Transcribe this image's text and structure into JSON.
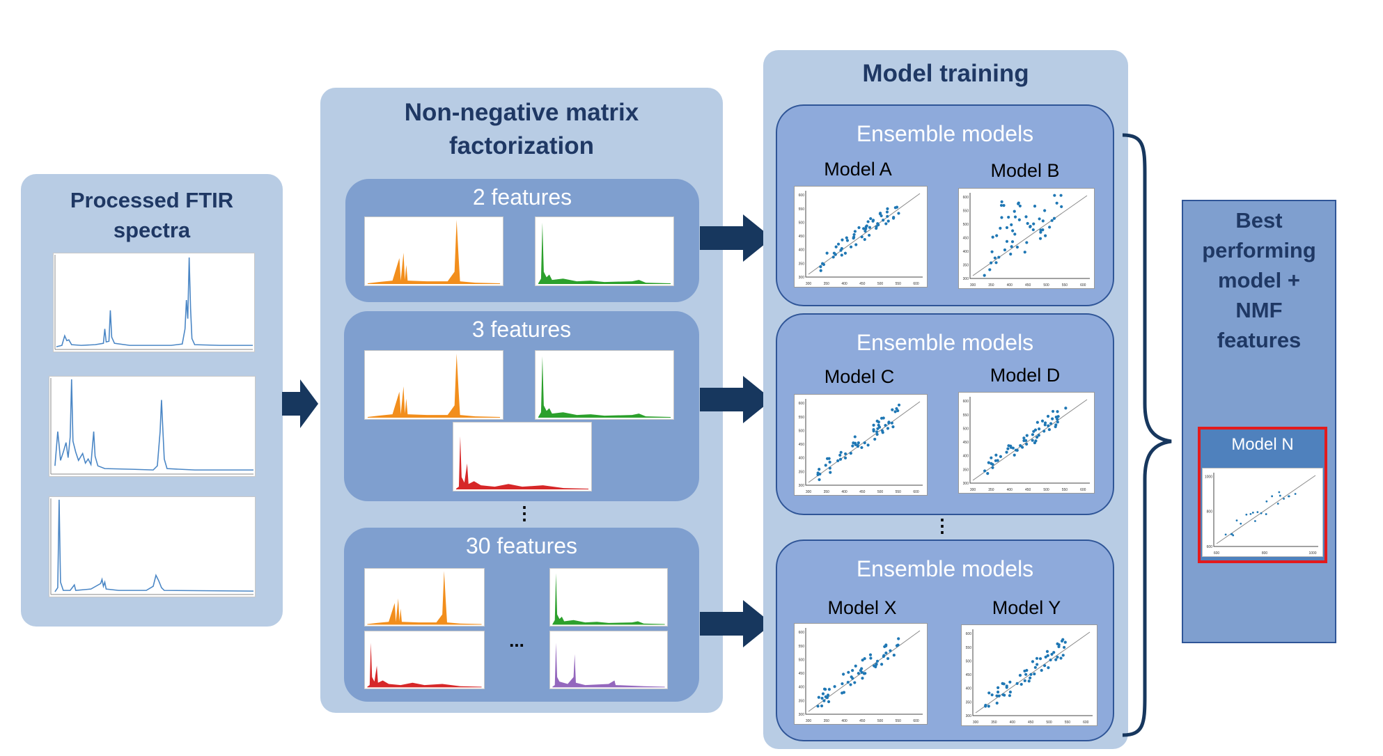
{
  "ftir": {
    "title_line1": "Processed FTIR",
    "title_line2": "spectra"
  },
  "nmf": {
    "title_line1": "Non-negative matrix",
    "title_line2": "factorization",
    "groups": [
      {
        "label": "2 features"
      },
      {
        "label": "3 features"
      },
      {
        "label": "30 features"
      }
    ],
    "vdots": "⋮",
    "hdots": "..."
  },
  "training": {
    "title": "Model training",
    "ensembles": [
      {
        "label": "Ensemble models",
        "model_left": "Model A",
        "model_right": "Model B"
      },
      {
        "label": "Ensemble models",
        "model_left": "Model C",
        "model_right": "Model D"
      },
      {
        "label": "Ensemble models",
        "model_left": "Model X",
        "model_right": "Model Y"
      }
    ],
    "vdots": "⋮",
    "x_ticks": [
      "300",
      "350",
      "400",
      "450",
      "500",
      "550",
      "600"
    ],
    "y_ticks": [
      "300",
      "350",
      "400",
      "450",
      "500",
      "550",
      "600"
    ]
  },
  "best": {
    "title_lines": [
      "Best",
      "performing",
      "model +",
      "NMF",
      "features"
    ],
    "model_label": "Model N",
    "x_ticks": [
      "600",
      "800",
      "1000"
    ],
    "y_ticks": [
      "600",
      "800",
      "1000"
    ]
  },
  "colors": {
    "panel": "#b8cce4",
    "inner": "#7f9fcf",
    "ensemble": "#8eaadb",
    "arrow": "#17375e",
    "title": "#1f3864",
    "spectrum": "#4a86c5",
    "orange": "#f28e1c",
    "green": "#2ca02c",
    "red": "#d62728",
    "purple": "#9467bd",
    "scatter_point": "#1f77b4",
    "highlight": "#e31a1c"
  }
}
